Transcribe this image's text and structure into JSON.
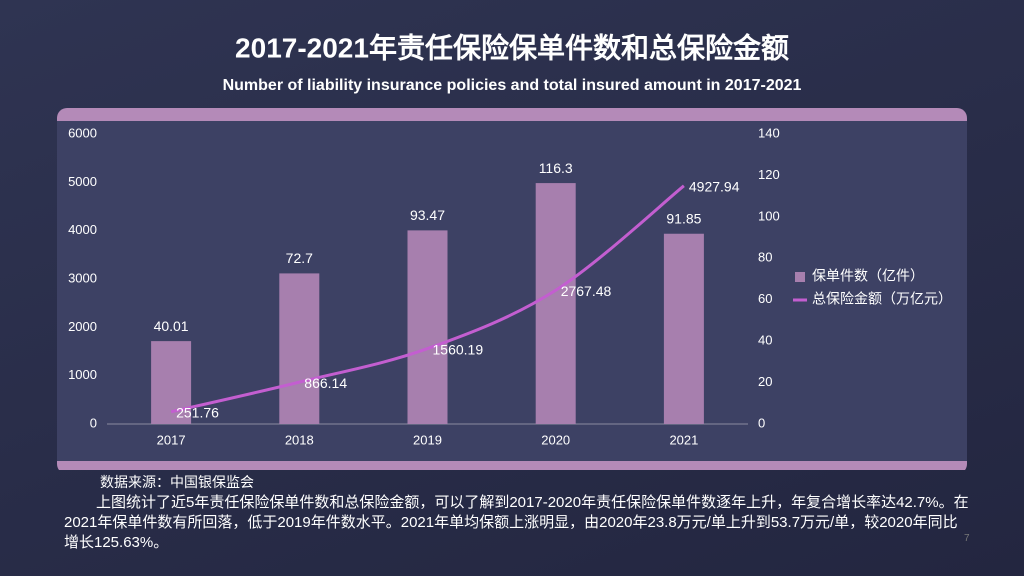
{
  "chart_data": {
    "type": "bar-line",
    "title": "2017-2021年责任保险保单件数和总保险金额",
    "subtitle": "Number of liability insurance policies and total insured amount in 2017-2021",
    "categories": [
      "2017",
      "2018",
      "2019",
      "2020",
      "2021"
    ],
    "series": [
      {
        "name": "保单件数（亿件）",
        "type": "bar",
        "axis": "y2",
        "color": "#a77fae",
        "values": [
          40.01,
          72.7,
          93.47,
          116.3,
          91.85
        ]
      },
      {
        "name": "总保险金额（万亿元）",
        "type": "line",
        "axis": "y",
        "color": "#c35ed0",
        "values": [
          251.76,
          866.14,
          1560.19,
          2767.48,
          4927.94
        ]
      }
    ],
    "ylim": [
      0,
      6000
    ],
    "yticks": [
      0,
      1000,
      2000,
      3000,
      4000,
      5000,
      6000
    ],
    "y2lim": [
      0,
      140
    ],
    "y2ticks": [
      0,
      20,
      40,
      60,
      80,
      100,
      120,
      140
    ],
    "legend": "right",
    "grid": false
  },
  "source": "数据来源：中国银保监会",
  "paragraph": "上图统计了近5年责任保险保单件数和总保险金额，可以了解到2017-2020年责任保险保单件数逐年上升，年复合增长率达42.7%。在2021年保单件数有所回落，低于2019年件数水平。2021年单均保额上涨明显，由2020年23.8万元/单上升到53.7万元/单，较2020年同比增长125.63%。",
  "page_number": "7"
}
